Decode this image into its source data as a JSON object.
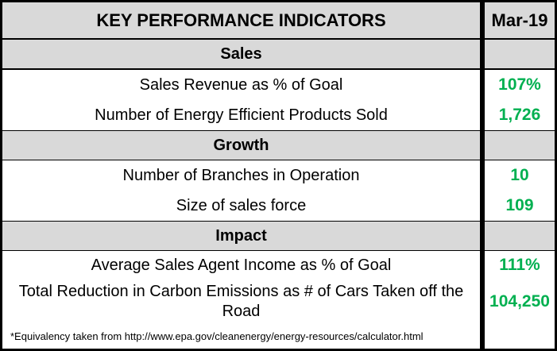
{
  "header": {
    "title": "KEY PERFORMANCE INDICATORS",
    "period": "Mar-19"
  },
  "sections": [
    {
      "name": "Sales",
      "rows": [
        {
          "label": "Sales Revenue as % of Goal",
          "value": "107%"
        },
        {
          "label": "Number of Energy Efficient Products Sold",
          "value": "1,726"
        }
      ]
    },
    {
      "name": "Growth",
      "rows": [
        {
          "label": "Number of Branches in Operation",
          "value": "10"
        },
        {
          "label": "Size of sales force",
          "value": "109"
        }
      ]
    },
    {
      "name": "Impact",
      "rows": [
        {
          "label": "Average Sales Agent Income as % of Goal",
          "value": "111%"
        },
        {
          "label": "Total Reduction in Carbon Emissions  as # of Cars Taken off the Road",
          "value": "104,250"
        }
      ]
    }
  ],
  "footnote": "*Equivalency taken from http://www.epa.gov/cleanenergy/energy-resources/calculator.html",
  "colors": {
    "header_bg": "#d9d9d9",
    "value_green": "#00b050",
    "border": "#000000"
  }
}
